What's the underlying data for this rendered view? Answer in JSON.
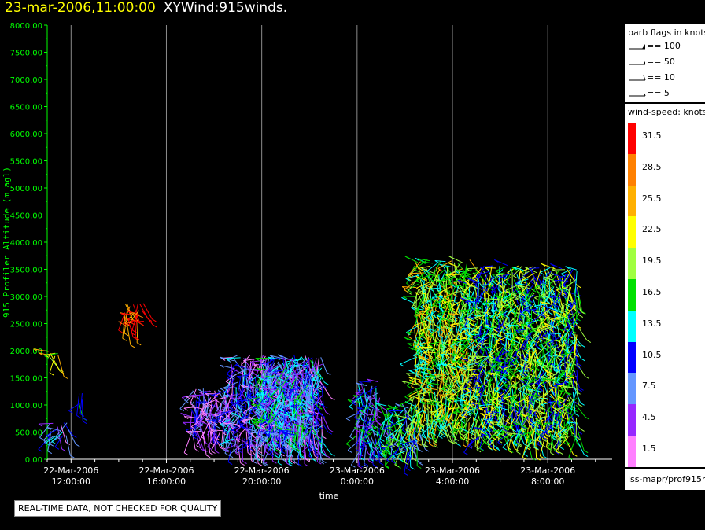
{
  "header": {
    "date_time": "23-mar-2006,11:00:00",
    "product": "XYWind:915winds."
  },
  "colors": {
    "axis": "#00ff00",
    "title_date": "#ffff00",
    "grid": "#ffffff",
    "background": "#000000"
  },
  "barb_legend": {
    "title": "barb flags in knots",
    "items": [
      {
        "label": "== 100",
        "icon": "barb-100-icon"
      },
      {
        "label": "== 50",
        "icon": "barb-50-icon"
      },
      {
        "label": "== 10",
        "icon": "barb-10-icon"
      },
      {
        "label": "== 5",
        "icon": "barb-5-icon"
      }
    ]
  },
  "speed_legend": {
    "title": "wind-speed: knots",
    "levels": [
      {
        "label": "31.5",
        "color": "#ff0000"
      },
      {
        "label": "28.5",
        "color": "#ff8000"
      },
      {
        "label": "25.5",
        "color": "#ffb000"
      },
      {
        "label": "22.5",
        "color": "#ffff00"
      },
      {
        "label": "19.5",
        "color": "#a0ff40"
      },
      {
        "label": "16.5",
        "color": "#00e000"
      },
      {
        "label": "13.5",
        "color": "#00ffff"
      },
      {
        "label": "10.5",
        "color": "#0000ff"
      },
      {
        "label": "7.5",
        "color": "#6496ff"
      },
      {
        "label": "4.5",
        "color": "#9628ff"
      },
      {
        "label": "1.5",
        "color": "#ff80ff"
      }
    ]
  },
  "source": "iss-mapr/prof915h",
  "qc_notice": "REAL-TIME DATA, NOT CHECKED FOR QUALITY",
  "chart_data": {
    "type": "scatter",
    "title": "23-mar-2006,11:00:00 XYWind:915winds.",
    "xlabel": "time",
    "ylabel": "915 Profiler Altitude (m agl)",
    "ylim": [
      0,
      8000
    ],
    "yticks": [
      "0.00",
      "500.00",
      "1000.00",
      "1500.00",
      "2000.00",
      "2500.00",
      "3000.00",
      "3500.00",
      "4000.00",
      "4500.00",
      "5000.00",
      "5500.00",
      "6000.00",
      "6500.00",
      "7000.00",
      "7500.00",
      "8000.00"
    ],
    "xticks": [
      {
        "date": "22-Mar-2006",
        "time": "12:00:00",
        "hour": 0
      },
      {
        "date": "22-Mar-2006",
        "time": "16:00:00",
        "hour": 4
      },
      {
        "date": "22-Mar-2006",
        "time": "20:00:00",
        "hour": 8
      },
      {
        "date": "23-Mar-2006",
        "time": "0:00:00",
        "hour": 12
      },
      {
        "date": "23-Mar-2006",
        "time": "4:00:00",
        "hour": 16
      },
      {
        "date": "23-Mar-2006",
        "time": "8:00:00",
        "hour": 20
      }
    ],
    "xlim_hours": [
      -1,
      22.7
    ],
    "grid": "vertical",
    "series": [
      {
        "hour_start": -1.0,
        "hour_end": -0.5,
        "alt_min": 1900,
        "alt_max": 2000,
        "speed": 19.5
      },
      {
        "hour_start": -0.9,
        "hour_end": -0.1,
        "alt_min": 400,
        "alt_max": 700,
        "speed": 7.5
      },
      {
        "hour_start": 0.3,
        "hour_end": 0.5,
        "alt_min": 950,
        "alt_max": 1300,
        "speed": 13.5
      },
      {
        "hour_start": 2.2,
        "hour_end": 3.1,
        "alt_min": 2500,
        "alt_max": 2900,
        "speed": 31.5
      },
      {
        "hour_start": 5.0,
        "hour_end": 6.7,
        "alt_min": 500,
        "alt_max": 1350,
        "speed": 4.5
      },
      {
        "hour_start": 6.7,
        "hour_end": 10.6,
        "alt_min": 250,
        "alt_max": 1950,
        "speed": 7.5
      },
      {
        "hour_start": 8.0,
        "hour_end": 10.2,
        "alt_min": 400,
        "alt_max": 1900,
        "speed": 10.5
      },
      {
        "hour_start": 12.0,
        "hour_end": 13.0,
        "alt_min": 200,
        "alt_max": 1450,
        "speed": 10.5
      },
      {
        "hour_start": 13.2,
        "hour_end": 14.6,
        "alt_min": 150,
        "alt_max": 1050,
        "speed": 13.5
      },
      {
        "hour_start": 14.4,
        "hour_end": 16.8,
        "alt_min": 600,
        "alt_max": 3700,
        "speed": 19.5
      },
      {
        "hour_start": 16.8,
        "hour_end": 21.3,
        "alt_min": 400,
        "alt_max": 3600,
        "speed": 16.5
      }
    ]
  }
}
